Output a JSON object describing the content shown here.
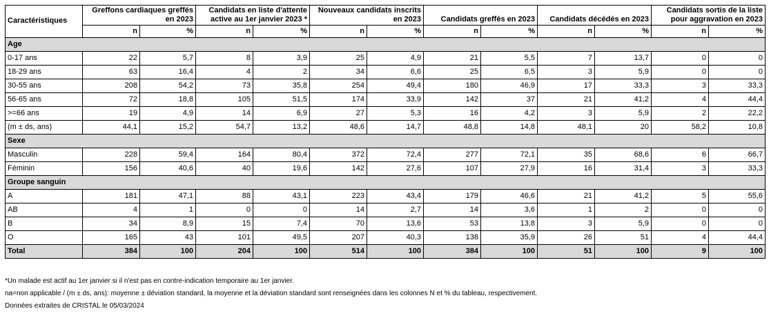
{
  "table": {
    "corner_label": "Caractéristiques",
    "columns": [
      {
        "title": "Greffons cardiaques greffés en 2023",
        "n_label": "n",
        "pct_label": "%"
      },
      {
        "title": "Candidats en liste d'attente active au 1er janvier 2023 *",
        "n_label": "n",
        "pct_label": "%"
      },
      {
        "title": "Nouveaux candidats inscrits en 2023",
        "n_label": "n",
        "pct_label": "%"
      },
      {
        "title": "Candidats greffés en 2023",
        "n_label": "n",
        "pct_label": "%"
      },
      {
        "title": "Candidats décédés en 2023",
        "n_label": "n",
        "pct_label": "%"
      },
      {
        "title": "Candidats sortis de la liste pour aggravation en 2023",
        "n_label": "n",
        "pct_label": "%"
      }
    ],
    "sections": [
      {
        "title": "Age",
        "rows": [
          {
            "label": "0-17 ans",
            "values": [
              "22",
              "5,7",
              "8",
              "3,9",
              "25",
              "4,9",
              "21",
              "5,5",
              "7",
              "13,7",
              "0",
              "0"
            ]
          },
          {
            "label": "18-29 ans",
            "values": [
              "63",
              "16,4",
              "4",
              "2",
              "34",
              "6,6",
              "25",
              "6,5",
              "3",
              "5,9",
              "0",
              "0"
            ]
          },
          {
            "label": "30-55 ans",
            "values": [
              "208",
              "54,2",
              "73",
              "35,8",
              "254",
              "49,4",
              "180",
              "46,9",
              "17",
              "33,3",
              "3",
              "33,3"
            ]
          },
          {
            "label": "56-65 ans",
            "values": [
              "72",
              "18,8",
              "105",
              "51,5",
              "174",
              "33,9",
              "142",
              "37",
              "21",
              "41,2",
              "4",
              "44,4"
            ]
          },
          {
            "label": ">=66 ans",
            "values": [
              "19",
              "4,9",
              "14",
              "6,9",
              "27",
              "5,3",
              "16",
              "4,2",
              "3",
              "5,9",
              "2",
              "22,2"
            ]
          },
          {
            "label": "(m ± ds, ans)",
            "values": [
              "44,1",
              "15,2",
              "54,7",
              "13,2",
              "48,6",
              "14,7",
              "48,8",
              "14,8",
              "48,1",
              "20",
              "58,2",
              "10,8"
            ]
          }
        ]
      },
      {
        "title": "Sexe",
        "rows": [
          {
            "label": "Masculin",
            "values": [
              "228",
              "59,4",
              "164",
              "80,4",
              "372",
              "72,4",
              "277",
              "72,1",
              "35",
              "68,6",
              "6",
              "66,7"
            ]
          },
          {
            "label": "Féminin",
            "values": [
              "156",
              "40,6",
              "40",
              "19,6",
              "142",
              "27,6",
              "107",
              "27,9",
              "16",
              "31,4",
              "3",
              "33,3"
            ]
          }
        ]
      },
      {
        "title": "Groupe sanguin",
        "rows": [
          {
            "label": "A",
            "values": [
              "181",
              "47,1",
              "88",
              "43,1",
              "223",
              "43,4",
              "179",
              "46,6",
              "21",
              "41,2",
              "5",
              "55,6"
            ]
          },
          {
            "label": "AB",
            "values": [
              "4",
              "1",
              "0",
              "0",
              "14",
              "2,7",
              "14",
              "3,6",
              "1",
              "2",
              "0",
              "0"
            ]
          },
          {
            "label": "B",
            "values": [
              "34",
              "8,9",
              "15",
              "7,4",
              "70",
              "13,6",
              "53",
              "13,8",
              "3",
              "5,9",
              "0",
              "0"
            ]
          },
          {
            "label": "O",
            "values": [
              "165",
              "43",
              "101",
              "49,5",
              "207",
              "40,3",
              "138",
              "35,9",
              "26",
              "51",
              "4",
              "44,4"
            ]
          }
        ]
      }
    ],
    "total": {
      "label": "Total",
      "values": [
        "384",
        "100",
        "204",
        "100",
        "514",
        "100",
        "384",
        "100",
        "51",
        "100",
        "9",
        "100"
      ]
    }
  },
  "notes": {
    "note1": "*Un malade est actif au 1er janvier si il n'est pas en contre-indication temporaire au 1er janvier.",
    "note2": "na=non applicable / (m ± ds, ans): moyenne ± déviation standard, la moyenne et la déviation standard sont renseignées dans les colonnes N et % du tableau, respectivement.",
    "note3": "Données extraites de CRISTAL le 05/03/2024"
  }
}
